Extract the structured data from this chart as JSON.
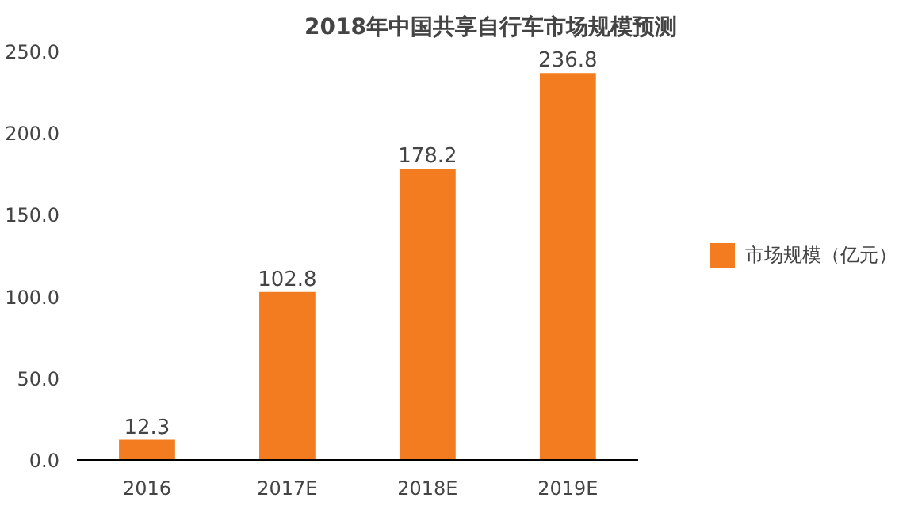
{
  "chart_data": {
    "type": "bar",
    "title": "2018年中国共享自行车市场规模预测",
    "categories": [
      "2016",
      "2017E",
      "2018E",
      "2019E"
    ],
    "series": [
      {
        "name": "市场规模（亿元）",
        "color": "#f47c20",
        "values": [
          12.3,
          102.8,
          178.2,
          236.8
        ]
      }
    ],
    "ylim": [
      0,
      250
    ],
    "yticks": [
      {
        "value": 0,
        "label": "0.0"
      },
      {
        "value": 50,
        "label": "50.0"
      },
      {
        "value": 100,
        "label": "100.0"
      },
      {
        "value": 150,
        "label": "150.0"
      },
      {
        "value": 200,
        "label": "200.0"
      },
      {
        "value": 250,
        "label": "250.0"
      }
    ],
    "data_labels": true,
    "grid": false,
    "legend": "right"
  }
}
